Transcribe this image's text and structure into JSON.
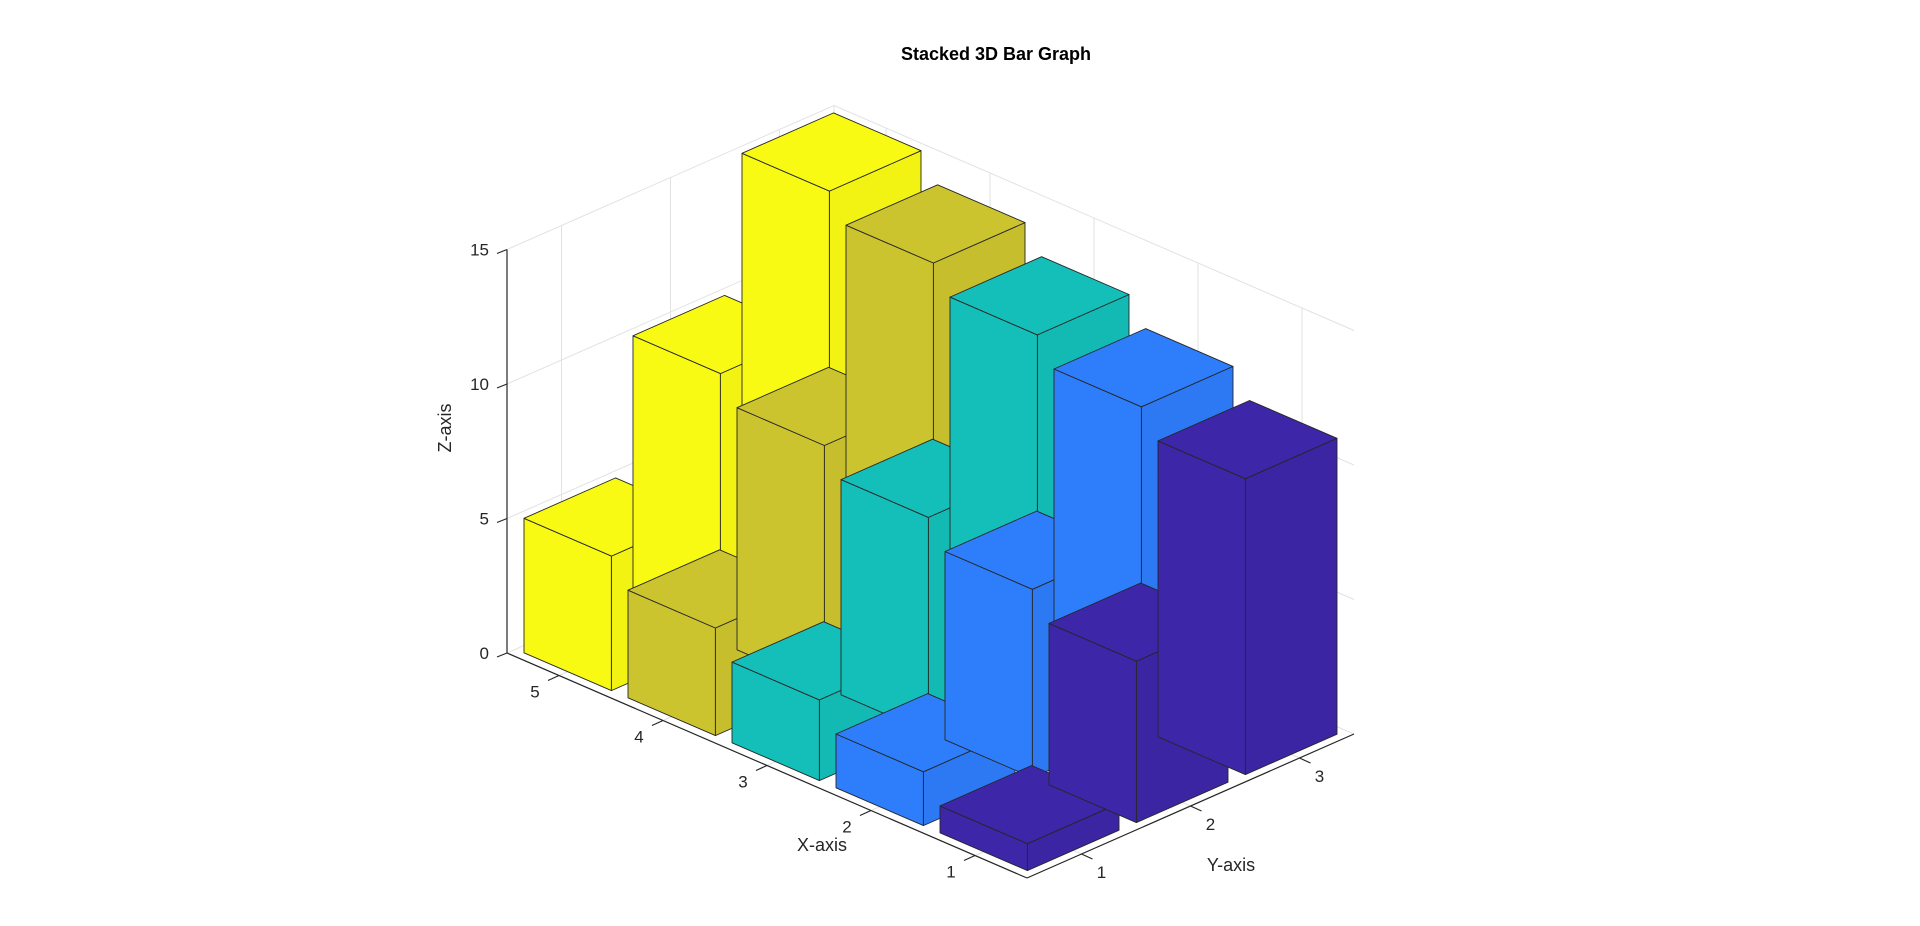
{
  "chart_data": {
    "type": "bar3",
    "title": "Stacked 3D Bar Graph",
    "xlabel": "X-axis",
    "ylabel": "Y-axis",
    "zlabel": "Z-axis",
    "x_ticks": [
      "1",
      "2",
      "3",
      "4",
      "5"
    ],
    "y_ticks": [
      "1",
      "2",
      "3"
    ],
    "z_ticks": [
      "0",
      "5",
      "10",
      "15"
    ],
    "zlim": [
      0,
      15
    ],
    "grid": true,
    "colors": {
      "1": "#3e26a8",
      "2": "#2e7dfb",
      "3": "#14bfb9",
      "4": "#ccc42e",
      "5": "#f9fa14"
    },
    "values": [
      {
        "x": 1,
        "y": 1,
        "z": 1
      },
      {
        "x": 1,
        "y": 2,
        "z": 6
      },
      {
        "x": 1,
        "y": 3,
        "z": 11
      },
      {
        "x": 2,
        "y": 1,
        "z": 2
      },
      {
        "x": 2,
        "y": 2,
        "z": 7
      },
      {
        "x": 2,
        "y": 3,
        "z": 12
      },
      {
        "x": 3,
        "y": 1,
        "z": 3
      },
      {
        "x": 3,
        "y": 2,
        "z": 8
      },
      {
        "x": 3,
        "y": 3,
        "z": 13
      },
      {
        "x": 4,
        "y": 1,
        "z": 4
      },
      {
        "x": 4,
        "y": 2,
        "z": 9
      },
      {
        "x": 4,
        "y": 3,
        "z": 14
      },
      {
        "x": 5,
        "y": 1,
        "z": 5
      },
      {
        "x": 5,
        "y": 2,
        "z": 10
      },
      {
        "x": 5,
        "y": 3,
        "z": 15
      }
    ]
  }
}
